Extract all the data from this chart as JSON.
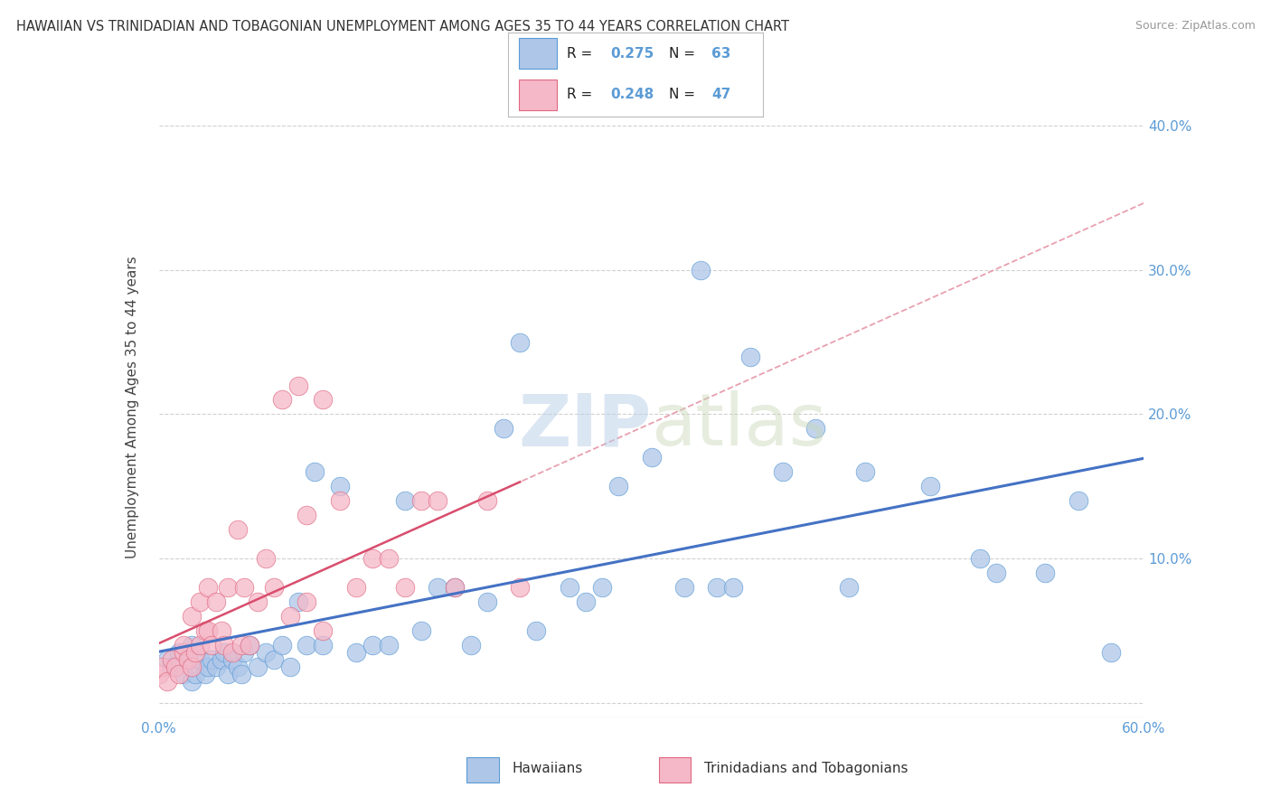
{
  "title": "HAWAIIAN VS TRINIDADIAN AND TOBAGONIAN UNEMPLOYMENT AMONG AGES 35 TO 44 YEARS CORRELATION CHART",
  "source": "Source: ZipAtlas.com",
  "ylabel": "Unemployment Among Ages 35 to 44 years",
  "xlim": [
    0.0,
    0.6
  ],
  "ylim": [
    -0.01,
    0.42
  ],
  "xticks": [
    0.0,
    0.1,
    0.2,
    0.3,
    0.4,
    0.5,
    0.6
  ],
  "yticks": [
    0.0,
    0.1,
    0.2,
    0.3,
    0.4
  ],
  "xticklabels": [
    "0.0%",
    "",
    "",
    "",
    "",
    "",
    "60.0%"
  ],
  "yticklabels_right": [
    "",
    "10.0%",
    "20.0%",
    "30.0%",
    "40.0%"
  ],
  "legend_r1": "0.275",
  "legend_n1": "63",
  "legend_r2": "0.248",
  "legend_n2": "47",
  "color_hawaiian_fill": "#aec6e8",
  "color_hawaiian_edge": "#5b9bd5",
  "color_trinidadian_fill": "#f5b8c8",
  "color_trinidadian_edge": "#e06880",
  "color_line_hawaiian": "#4472c4",
  "color_line_trinidadian": "#d94f6e",
  "color_line_trinidadian_dashed": "#e8a0b0",
  "background_color": "#ffffff",
  "grid_color": "#cccccc",
  "tick_color": "#5b9bd5",
  "hawaiian_x": [
    0.005,
    0.008,
    0.012,
    0.015,
    0.018,
    0.02,
    0.02,
    0.022,
    0.025,
    0.028,
    0.03,
    0.032,
    0.035,
    0.038,
    0.04,
    0.042,
    0.045,
    0.048,
    0.05,
    0.052,
    0.055,
    0.06,
    0.065,
    0.07,
    0.075,
    0.08,
    0.085,
    0.09,
    0.095,
    0.1,
    0.11,
    0.12,
    0.13,
    0.14,
    0.15,
    0.16,
    0.17,
    0.18,
    0.19,
    0.2,
    0.21,
    0.22,
    0.23,
    0.25,
    0.26,
    0.27,
    0.28,
    0.3,
    0.32,
    0.33,
    0.34,
    0.35,
    0.36,
    0.38,
    0.4,
    0.42,
    0.43,
    0.47,
    0.5,
    0.51,
    0.54,
    0.56,
    0.58
  ],
  "hawaiian_y": [
    0.03,
    0.025,
    0.035,
    0.02,
    0.03,
    0.015,
    0.04,
    0.02,
    0.03,
    0.02,
    0.025,
    0.03,
    0.025,
    0.03,
    0.035,
    0.02,
    0.03,
    0.025,
    0.02,
    0.035,
    0.04,
    0.025,
    0.035,
    0.03,
    0.04,
    0.025,
    0.07,
    0.04,
    0.16,
    0.04,
    0.15,
    0.035,
    0.04,
    0.04,
    0.14,
    0.05,
    0.08,
    0.08,
    0.04,
    0.07,
    0.19,
    0.25,
    0.05,
    0.08,
    0.07,
    0.08,
    0.15,
    0.17,
    0.08,
    0.3,
    0.08,
    0.08,
    0.24,
    0.16,
    0.19,
    0.08,
    0.16,
    0.15,
    0.1,
    0.09,
    0.09,
    0.14,
    0.035
  ],
  "trinidadian_x": [
    0.0,
    0.002,
    0.005,
    0.008,
    0.01,
    0.012,
    0.015,
    0.015,
    0.018,
    0.02,
    0.02,
    0.022,
    0.025,
    0.025,
    0.028,
    0.03,
    0.03,
    0.032,
    0.035,
    0.038,
    0.04,
    0.042,
    0.045,
    0.048,
    0.05,
    0.052,
    0.055,
    0.06,
    0.065,
    0.07,
    0.075,
    0.08,
    0.085,
    0.09,
    0.09,
    0.1,
    0.1,
    0.11,
    0.12,
    0.13,
    0.14,
    0.15,
    0.16,
    0.17,
    0.18,
    0.2,
    0.22
  ],
  "trinidadian_y": [
    0.02,
    0.025,
    0.015,
    0.03,
    0.025,
    0.02,
    0.035,
    0.04,
    0.03,
    0.025,
    0.06,
    0.035,
    0.04,
    0.07,
    0.05,
    0.05,
    0.08,
    0.04,
    0.07,
    0.05,
    0.04,
    0.08,
    0.035,
    0.12,
    0.04,
    0.08,
    0.04,
    0.07,
    0.1,
    0.08,
    0.21,
    0.06,
    0.22,
    0.07,
    0.13,
    0.05,
    0.21,
    0.14,
    0.08,
    0.1,
    0.1,
    0.08,
    0.14,
    0.14,
    0.08,
    0.14,
    0.08
  ]
}
